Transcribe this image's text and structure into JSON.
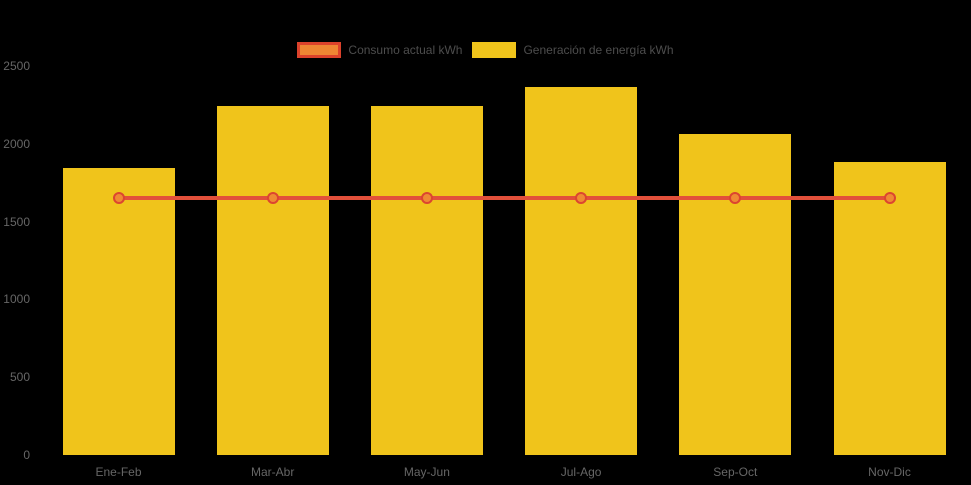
{
  "legend": {
    "items": [
      {
        "label": "Consumo actual kWh",
        "series": "line"
      },
      {
        "label": "Generación de energía kWh",
        "series": "bar"
      }
    ]
  },
  "colors": {
    "background": "#000000",
    "bar_fill": "#F0C41B",
    "line_stroke": "#E2503A",
    "point_fill": "#EF8A33",
    "point_border": "#DC4530",
    "line_swatch_fill": "#EF8633",
    "line_swatch_border": "#DC422B",
    "bar_swatch_fill": "#F0C41B",
    "tick_text": "#666666",
    "legend_text": "#4D4D4D"
  },
  "chart_data": {
    "type": "bar",
    "categories": [
      "Ene-Feb",
      "Mar-Abr",
      "May-Jun",
      "Jul-Ago",
      "Sep-Oct",
      "Nov-Dic"
    ],
    "series": [
      {
        "name": "Consumo actual kWh",
        "type": "line",
        "values": [
          1650,
          1650,
          1650,
          1650,
          1650,
          1650
        ],
        "color": "#E2503A",
        "point_fill": "#EF8A33",
        "markers": true
      },
      {
        "name": "Generación de energía kWh",
        "type": "bar",
        "values": [
          1845,
          2245,
          2240,
          2365,
          2065,
          1880
        ],
        "color": "#F0C41B"
      }
    ],
    "title": "",
    "xlabel": "",
    "ylabel": "",
    "ylim": [
      0,
      2500
    ],
    "yticks": [
      0,
      500,
      1000,
      1500,
      2000,
      2500
    ],
    "grid": false,
    "legend_position": "top-center"
  }
}
